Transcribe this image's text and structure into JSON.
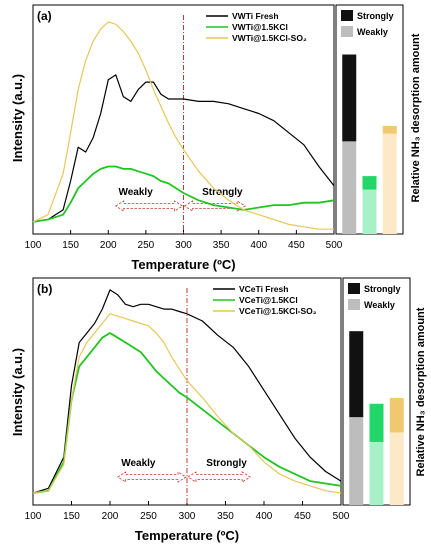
{
  "chart_data": [
    {
      "type": "line",
      "panel_label": "(a)",
      "xlabel": "Temperature (ºC)",
      "ylabel": "Intensity (a.u.)",
      "xlim": [
        100,
        500
      ],
      "x_ticks": [
        100,
        150,
        200,
        250,
        300,
        350,
        400,
        450,
        500
      ],
      "legend_position": "top-right",
      "divider_x": 300,
      "region_labels": [
        "Weakly",
        "Strongly"
      ],
      "series": [
        {
          "name": "VWTi Fresh",
          "color": "#000000",
          "x": [
            100,
            120,
            140,
            150,
            160,
            170,
            180,
            190,
            200,
            210,
            220,
            230,
            240,
            250,
            260,
            270,
            280,
            290,
            300,
            320,
            340,
            360,
            380,
            400,
            420,
            440,
            460,
            480,
            500
          ],
          "y": [
            0.05,
            0.06,
            0.1,
            0.22,
            0.36,
            0.34,
            0.4,
            0.5,
            0.64,
            0.66,
            0.57,
            0.55,
            0.6,
            0.63,
            0.63,
            0.58,
            0.56,
            0.56,
            0.56,
            0.55,
            0.55,
            0.54,
            0.52,
            0.5,
            0.47,
            0.42,
            0.37,
            0.28,
            0.2
          ]
        },
        {
          "name": "VWTi@1.5KCl",
          "color": "#22c422",
          "x": [
            100,
            120,
            140,
            150,
            160,
            170,
            180,
            190,
            200,
            210,
            220,
            230,
            240,
            250,
            260,
            270,
            280,
            290,
            300,
            320,
            340,
            360,
            380,
            400,
            420,
            440,
            460,
            480,
            500
          ],
          "y": [
            0.05,
            0.06,
            0.08,
            0.13,
            0.19,
            0.22,
            0.25,
            0.27,
            0.28,
            0.28,
            0.27,
            0.27,
            0.26,
            0.25,
            0.24,
            0.22,
            0.21,
            0.19,
            0.17,
            0.14,
            0.12,
            0.11,
            0.1,
            0.11,
            0.12,
            0.12,
            0.13,
            0.13,
            0.14
          ]
        },
        {
          "name": "VWTi@1.5KCl-SO₂",
          "color": "#e8c659",
          "x": [
            100,
            120,
            140,
            150,
            160,
            170,
            180,
            190,
            200,
            210,
            220,
            230,
            240,
            250,
            260,
            270,
            280,
            290,
            300,
            320,
            340,
            360,
            380,
            400,
            420,
            440,
            460,
            480,
            500
          ],
          "y": [
            0.05,
            0.08,
            0.25,
            0.42,
            0.6,
            0.72,
            0.8,
            0.85,
            0.88,
            0.87,
            0.84,
            0.8,
            0.75,
            0.68,
            0.6,
            0.53,
            0.46,
            0.4,
            0.35,
            0.26,
            0.19,
            0.14,
            0.1,
            0.08,
            0.06,
            0.04,
            0.03,
            0.02,
            0.02
          ]
        }
      ],
      "bars": {
        "ylabel": "Relative NH₃ desorption amount",
        "legend": [
          "Strongly",
          "Weakly"
        ],
        "colors": {
          "strongly": [
            "#111111",
            "#22d66a",
            "#f0c870"
          ],
          "weakly": [
            "#bdbdbd",
            "#a8f0c8",
            "#fde9c8"
          ]
        },
        "categories": [
          "VWTi Fresh",
          "VWTi@1.5KCl",
          "VWTi@1.5KCl-SO₂"
        ],
        "strongly": [
          0.45,
          0.07,
          0.04
        ],
        "weakly": [
          0.48,
          0.23,
          0.52
        ]
      }
    },
    {
      "type": "line",
      "panel_label": "(b)",
      "xlabel": "Temperature (ºC)",
      "ylabel": "Intensity (a.u.)",
      "xlim": [
        100,
        500
      ],
      "x_ticks": [
        100,
        150,
        200,
        250,
        300,
        350,
        400,
        450,
        500
      ],
      "legend_position": "top-right",
      "divider_x": 300,
      "region_labels": [
        "Weakly",
        "Strongly"
      ],
      "series": [
        {
          "name": "VCeTi Fresh",
          "color": "#000000",
          "x": [
            100,
            120,
            140,
            150,
            160,
            170,
            180,
            190,
            200,
            210,
            220,
            230,
            240,
            250,
            260,
            270,
            280,
            290,
            300,
            320,
            340,
            360,
            380,
            400,
            420,
            440,
            460,
            480,
            500
          ],
          "y": [
            0.05,
            0.07,
            0.2,
            0.5,
            0.68,
            0.72,
            0.76,
            0.82,
            0.9,
            0.88,
            0.84,
            0.83,
            0.84,
            0.84,
            0.83,
            0.82,
            0.82,
            0.81,
            0.8,
            0.77,
            0.71,
            0.66,
            0.58,
            0.48,
            0.38,
            0.28,
            0.2,
            0.14,
            0.1
          ]
        },
        {
          "name": "VCeTi@1.5KCl",
          "color": "#22c422",
          "x": [
            100,
            120,
            140,
            150,
            160,
            170,
            180,
            190,
            200,
            210,
            220,
            230,
            240,
            250,
            260,
            270,
            280,
            290,
            300,
            320,
            340,
            360,
            380,
            400,
            420,
            440,
            460,
            480,
            500
          ],
          "y": [
            0.05,
            0.06,
            0.18,
            0.44,
            0.58,
            0.62,
            0.66,
            0.7,
            0.72,
            0.7,
            0.68,
            0.66,
            0.64,
            0.6,
            0.56,
            0.53,
            0.5,
            0.47,
            0.45,
            0.4,
            0.35,
            0.3,
            0.25,
            0.2,
            0.16,
            0.13,
            0.1,
            0.09,
            0.08
          ]
        },
        {
          "name": "VCeTi@1.5KCl-SO₂",
          "color": "#e8c659",
          "x": [
            100,
            120,
            140,
            150,
            160,
            170,
            180,
            190,
            200,
            210,
            220,
            230,
            240,
            250,
            260,
            270,
            280,
            290,
            300,
            320,
            340,
            360,
            380,
            400,
            420,
            440,
            460,
            480,
            500
          ],
          "y": [
            0.05,
            0.06,
            0.17,
            0.44,
            0.62,
            0.68,
            0.72,
            0.76,
            0.8,
            0.79,
            0.78,
            0.77,
            0.76,
            0.75,
            0.72,
            0.68,
            0.62,
            0.57,
            0.52,
            0.45,
            0.37,
            0.3,
            0.25,
            0.18,
            0.13,
            0.1,
            0.08,
            0.06,
            0.05
          ]
        }
      ],
      "bars": {
        "ylabel": "Relative NH₃ desorption amount",
        "legend": [
          "Strongly",
          "Weakly"
        ],
        "colors": {
          "strongly": [
            "#111111",
            "#22d66a",
            "#f0c870"
          ],
          "weakly": [
            "#bdbdbd",
            "#a8f0c8",
            "#fde9c8"
          ]
        },
        "categories": [
          "VCeTi Fresh",
          "VCeTi@1.5KCl",
          "VCeTi@1.5KCl-SO₂"
        ],
        "strongly": [
          0.45,
          0.2,
          0.18
        ],
        "weakly": [
          0.46,
          0.33,
          0.38
        ]
      }
    }
  ]
}
